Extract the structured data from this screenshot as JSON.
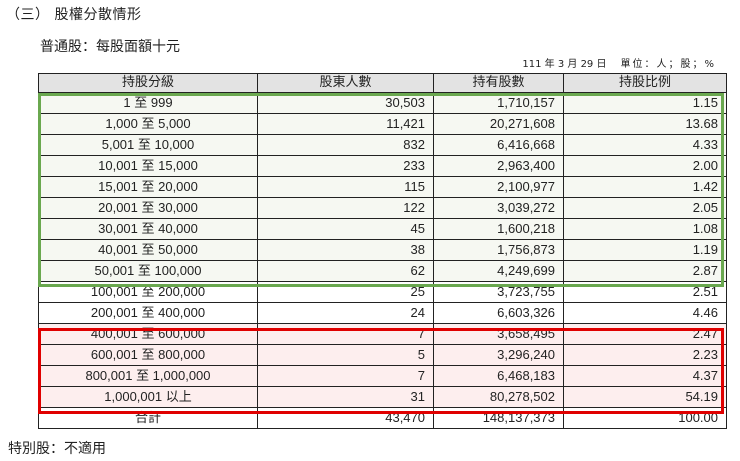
{
  "document": {
    "section_title": "（三） 股權分散情形",
    "subtitle": "普通股：每股面額十元",
    "date": "111 年 3 月 29 日",
    "unit": "單位：人；股；%",
    "footnote": "特別股：不適用"
  },
  "table": {
    "headers": [
      "持股分級",
      "股東人數",
      "持有股數",
      "持股比例"
    ],
    "rows": [
      {
        "range": "1 至 999",
        "holders": "30,503",
        "shares": "1,710,157",
        "percent": "1.15",
        "highlight": "green"
      },
      {
        "range": "1,000 至 5,000",
        "holders": "11,421",
        "shares": "20,271,608",
        "percent": "13.68",
        "highlight": "green"
      },
      {
        "range": "5,001 至 10,000",
        "holders": "832",
        "shares": "6,416,668",
        "percent": "4.33",
        "highlight": "green"
      },
      {
        "range": "10,001 至 15,000",
        "holders": "233",
        "shares": "2,963,400",
        "percent": "2.00",
        "highlight": "green"
      },
      {
        "range": "15,001 至 20,000",
        "holders": "115",
        "shares": "2,100,977",
        "percent": "1.42",
        "highlight": "green"
      },
      {
        "range": "20,001 至 30,000",
        "holders": "122",
        "shares": "3,039,272",
        "percent": "2.05",
        "highlight": "green"
      },
      {
        "range": "30,001 至 40,000",
        "holders": "45",
        "shares": "1,600,218",
        "percent": "1.08",
        "highlight": "green"
      },
      {
        "range": "40,001 至 50,000",
        "holders": "38",
        "shares": "1,756,873",
        "percent": "1.19",
        "highlight": "green"
      },
      {
        "range": "50,001 至 100,000",
        "holders": "62",
        "shares": "4,249,699",
        "percent": "2.87",
        "highlight": "green"
      },
      {
        "range": "100,001 至 200,000",
        "holders": "25",
        "shares": "3,723,755",
        "percent": "2.51",
        "highlight": "none"
      },
      {
        "range": "200,001 至 400,000",
        "holders": "24",
        "shares": "6,603,326",
        "percent": "4.46",
        "highlight": "none"
      },
      {
        "range": "400,001 至 600,000",
        "holders": "7",
        "shares": "3,658,495",
        "percent": "2.47",
        "highlight": "red"
      },
      {
        "range": "600,001 至 800,000",
        "holders": "5",
        "shares": "3,296,240",
        "percent": "2.23",
        "highlight": "red"
      },
      {
        "range": "800,001 至 1,000,000",
        "holders": "7",
        "shares": "6,468,183",
        "percent": "4.37",
        "highlight": "red"
      },
      {
        "range": "1,000,001 以上",
        "holders": "31",
        "shares": "80,278,502",
        "percent": "54.19",
        "highlight": "red"
      }
    ],
    "total": {
      "label": "合計",
      "holders": "43,470",
      "shares": "148,137,373",
      "percent": "100.00"
    }
  },
  "colors": {
    "header_bg": "#e3e3e3",
    "green_highlight": "#6aa84f",
    "red_highlight": "#e00000",
    "green_fill": "#f6f8f2",
    "red_fill": "#fdeeee"
  }
}
